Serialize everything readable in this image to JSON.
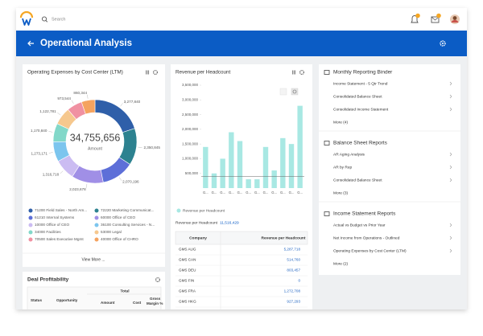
{
  "topbar": {
    "search_placeholder": "Search"
  },
  "header": {
    "title": "Operational Analysis"
  },
  "chart_data": [
    {
      "type": "donut",
      "title": "Operating Expenses by Cost Center (LTM)",
      "center_value": "34,755,656",
      "center_label": "Amount",
      "categories": [
        "71200 Field Sales - North Am...",
        "72220 Marketing Communicat...",
        "61210 Internal Systems",
        "60000 Office of CEO",
        "10000 Office of CEO",
        "36100 Consulting Services - N...",
        "34000 Facilities",
        "53000 Legal",
        "70500 Sales Executive Mgmt",
        "40000 Office of CHRO"
      ],
      "values": [
        3277840,
        2350845,
        2070196,
        2023678,
        1316718,
        1273171,
        1170840,
        1122781,
        973544,
        860344
      ],
      "value_labels": [
        "3,277,840",
        "2,350,845",
        "2,070,196",
        "2,023,678",
        "1,316,718",
        "1,273,171",
        "1,170,840",
        "1,122,781",
        "973,544",
        "860,344"
      ],
      "colors": [
        "#2f5fa9",
        "#2d8290",
        "#5d6fd8",
        "#a08fe6",
        "#cbbcf2",
        "#7cc5ee",
        "#82d8c9",
        "#f6c88e",
        "#f091a2",
        "#f5a35f"
      ],
      "footer_link": "View More ..."
    },
    {
      "type": "bar",
      "title": "Revenue per Headcount",
      "categories": [
        "G...",
        "G...",
        "G...",
        "G...",
        "G...",
        "G...",
        "G...",
        "G...",
        "G...",
        "G...",
        "G...",
        "G..."
      ],
      "series": [
        {
          "name": "Revenue per Headcount",
          "color": "#a8e8e3",
          "values": [
            1400000,
            500000,
            1000000,
            1900000,
            1600000,
            300000,
            300000,
            1400000,
            600000,
            1700000,
            1500000,
            2800000
          ]
        }
      ],
      "reference_line": 400000,
      "ylim": [
        0,
        3500000
      ],
      "yticks": [
        {
          "value": 500000,
          "label": "500,000"
        },
        {
          "value": 1000000,
          "label": "1,000,000"
        },
        {
          "value": 1500000,
          "label": "1,500,000"
        },
        {
          "value": 2000000,
          "label": "2,000,000"
        },
        {
          "value": 2500000,
          "label": "2,500,000"
        },
        {
          "value": 3000000,
          "label": "3,000,000"
        },
        {
          "value": 3500000,
          "label": "3,500,000"
        }
      ]
    }
  ],
  "revenue_summary": {
    "label": "Revenue per Headcount",
    "value": "11,516,429"
  },
  "revenue_table": {
    "columns": [
      "Company",
      "Revenue per Headcount"
    ],
    "rows": [
      [
        "GMS AUG",
        "5,287,718"
      ],
      [
        "GMS CAN",
        "514,760"
      ],
      [
        "GMS DEU",
        "803,457"
      ],
      [
        "GMS FIN",
        "0"
      ],
      [
        "GMS FRA",
        "1,272,708"
      ],
      [
        "GMS HKG",
        "927,293"
      ]
    ]
  },
  "deal_profitability": {
    "title": "Deal Profitability",
    "group_header": "Total",
    "columns": [
      "Status",
      "Opportunity",
      "Amount",
      "Cost",
      "Gross",
      "Margin %"
    ]
  },
  "reports": [
    {
      "title": "Monthly Reporting Binder",
      "items": [
        "Income Statement - 5 Qtr Trend",
        "Consolidated Balance Sheet",
        "Consolidated Income Statement"
      ],
      "more": "More (4)"
    },
    {
      "title": "Balance Sheet Reports",
      "items": [
        "AR Aging Analysis",
        "AR by Rep",
        "Consolidated Balance Sheet"
      ],
      "more": "More (3)"
    },
    {
      "title": "Income Statement Reports",
      "items": [
        "Actual vs Budget vs Prior Year",
        "Net Income from Operations - Outlined",
        "Operating Expenses by Cost Center (LTM)"
      ],
      "more": "More (2)"
    }
  ]
}
